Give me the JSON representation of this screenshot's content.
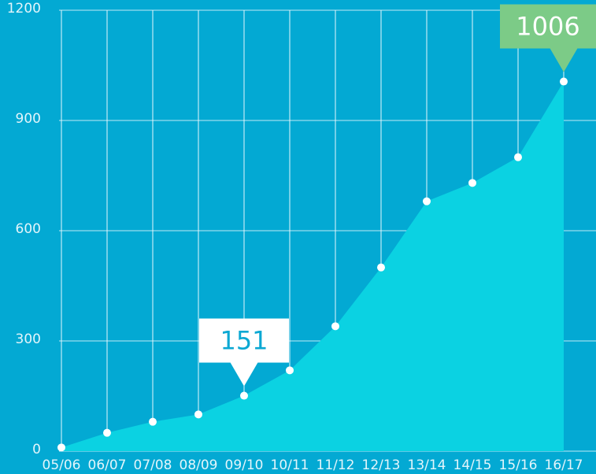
{
  "chart_data": {
    "type": "area",
    "categories": [
      "05/06",
      "06/07",
      "07/08",
      "08/09",
      "09/10",
      "10/11",
      "11/12",
      "12/13",
      "13/14",
      "14/15",
      "15/16",
      "16/17"
    ],
    "values": [
      10,
      50,
      80,
      100,
      151,
      220,
      340,
      500,
      680,
      730,
      800,
      1006
    ],
    "color": "#0bd2e2",
    "background": "#03a9d3",
    "ylim": [
      0,
      1200
    ],
    "yticks": [
      0,
      300,
      600,
      900,
      1200
    ],
    "grid": true,
    "callouts": [
      {
        "index": 4,
        "color": "#ffffff",
        "text_color": "#0ba8d3"
      },
      {
        "index": 11,
        "color": "#7ccb87",
        "text_color": "#ffffff"
      }
    ]
  }
}
